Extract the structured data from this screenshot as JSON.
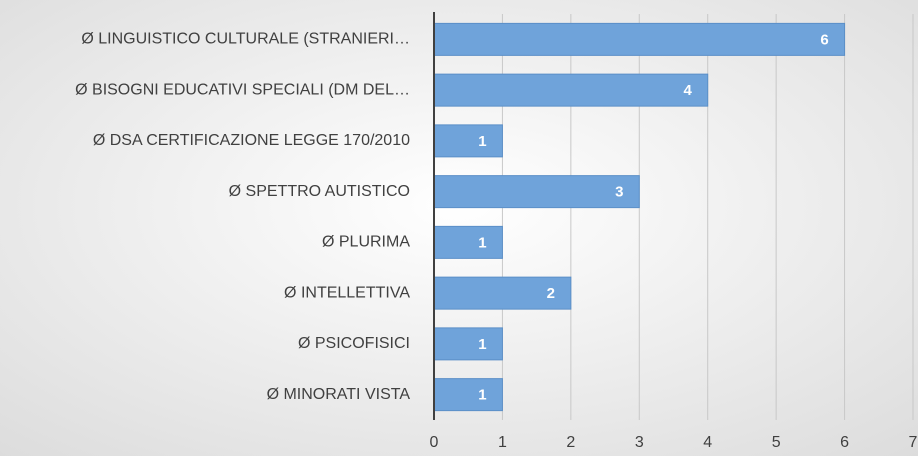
{
  "chart_data": {
    "type": "bar",
    "orientation": "horizontal",
    "categories": [
      "Ø  LINGUISTICO CULTURALE (STRANIERI…",
      "Ø  BISOGNI EDUCATIVI SPECIALI (DM DEL…",
      "Ø  DSA CERTIFICAZIONE LEGGE 170/2010",
      "Ø  SPETTRO AUTISTICO",
      "Ø  PLURIMA",
      "Ø  INTELLETTIVA",
      "Ø  PSICOFISICI",
      "Ø  MINORATI VISTA"
    ],
    "values": [
      6,
      4,
      1,
      3,
      1,
      2,
      1,
      1
    ],
    "color": "#6fa3da",
    "xlim": [
      0,
      7
    ],
    "xticks": [
      0,
      1,
      2,
      3,
      4,
      5,
      6,
      7
    ],
    "grid": true
  }
}
